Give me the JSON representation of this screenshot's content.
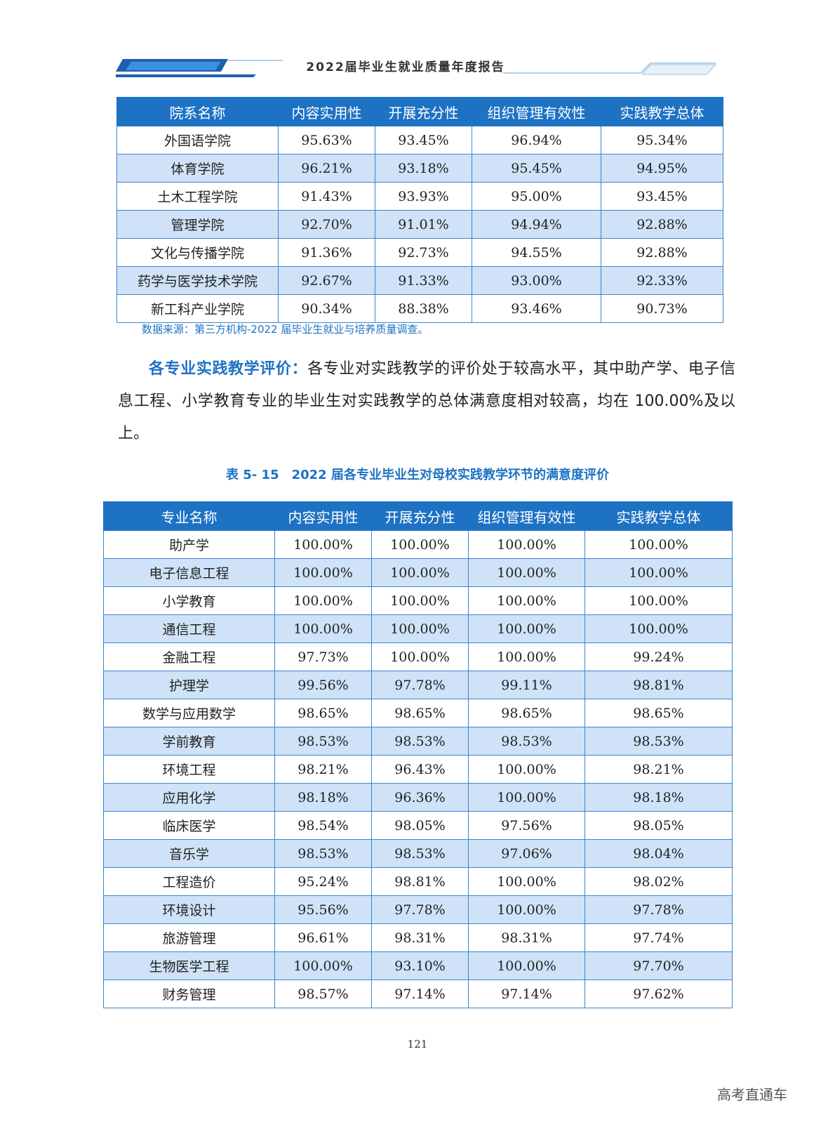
{
  "header": {
    "title": "2022届毕业生就业质量年度报告"
  },
  "table1": {
    "columns": [
      "院系名称",
      "内容实用性",
      "开展充分性",
      "组织管理有效性",
      "实践教学总体"
    ],
    "rows": [
      [
        "外国语学院",
        "95.63%",
        "93.45%",
        "96.94%",
        "95.34%"
      ],
      [
        "体育学院",
        "96.21%",
        "93.18%",
        "95.45%",
        "94.95%"
      ],
      [
        "土木工程学院",
        "91.43%",
        "93.93%",
        "95.00%",
        "93.45%"
      ],
      [
        "管理学院",
        "92.70%",
        "91.01%",
        "94.94%",
        "92.88%"
      ],
      [
        "文化与传播学院",
        "91.36%",
        "92.73%",
        "94.55%",
        "92.88%"
      ],
      [
        "药学与医学技术学院",
        "92.67%",
        "91.33%",
        "93.00%",
        "92.33%"
      ],
      [
        "新工科产业学院",
        "90.34%",
        "88.38%",
        "93.46%",
        "90.73%"
      ]
    ]
  },
  "source_note": "数据来源：第三方机构-2022 届毕业生就业与培养质量调查。",
  "paragraph": {
    "lead": "各专业实践教学评价：",
    "body": "各专业对实践教学的评价处于较高水平，其中助产学、电子信息工程、小学教育专业的毕业生对实践教学的总体满意度相对较高，均在 100.00%及以上。"
  },
  "table2_caption": "表 5- 15　2022 届各专业毕业生对母校实践教学环节的满意度评价",
  "table2": {
    "columns": [
      "专业名称",
      "内容实用性",
      "开展充分性",
      "组织管理有效性",
      "实践教学总体"
    ],
    "rows": [
      [
        "助产学",
        "100.00%",
        "100.00%",
        "100.00%",
        "100.00%"
      ],
      [
        "电子信息工程",
        "100.00%",
        "100.00%",
        "100.00%",
        "100.00%"
      ],
      [
        "小学教育",
        "100.00%",
        "100.00%",
        "100.00%",
        "100.00%"
      ],
      [
        "通信工程",
        "100.00%",
        "100.00%",
        "100.00%",
        "100.00%"
      ],
      [
        "金融工程",
        "97.73%",
        "100.00%",
        "100.00%",
        "99.24%"
      ],
      [
        "护理学",
        "99.56%",
        "97.78%",
        "99.11%",
        "98.81%"
      ],
      [
        "数学与应用数学",
        "98.65%",
        "98.65%",
        "98.65%",
        "98.65%"
      ],
      [
        "学前教育",
        "98.53%",
        "98.53%",
        "98.53%",
        "98.53%"
      ],
      [
        "环境工程",
        "98.21%",
        "96.43%",
        "100.00%",
        "98.21%"
      ],
      [
        "应用化学",
        "98.18%",
        "96.36%",
        "100.00%",
        "98.18%"
      ],
      [
        "临床医学",
        "98.54%",
        "98.05%",
        "97.56%",
        "98.05%"
      ],
      [
        "音乐学",
        "98.53%",
        "98.53%",
        "97.06%",
        "98.04%"
      ],
      [
        "工程造价",
        "95.24%",
        "98.81%",
        "100.00%",
        "98.02%"
      ],
      [
        "环境设计",
        "95.56%",
        "97.78%",
        "100.00%",
        "97.78%"
      ],
      [
        "旅游管理",
        "96.61%",
        "98.31%",
        "98.31%",
        "97.74%"
      ],
      [
        "生物医学工程",
        "100.00%",
        "93.10%",
        "100.00%",
        "97.70%"
      ],
      [
        "财务管理",
        "98.57%",
        "97.14%",
        "97.14%",
        "97.62%"
      ]
    ]
  },
  "page_number": "121",
  "watermark": "高考直通车",
  "colors": {
    "accent": "#1e72c4",
    "row_alt": "#cfe2f7"
  }
}
